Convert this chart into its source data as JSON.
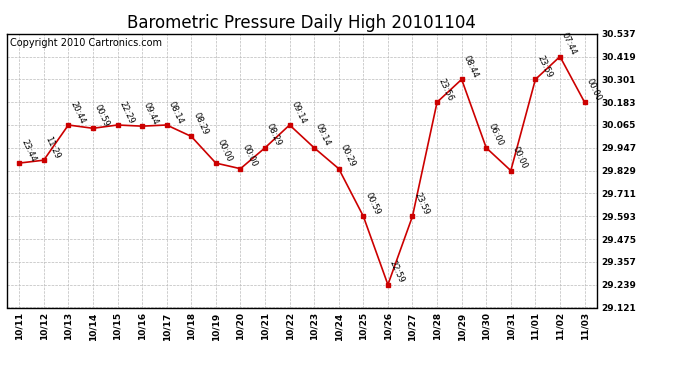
{
  "title": "Barometric Pressure Daily High 20101104",
  "copyright": "Copyright 2010 Cartronics.com",
  "x_labels": [
    "10/11",
    "10/12",
    "10/13",
    "10/14",
    "10/15",
    "10/16",
    "10/17",
    "10/18",
    "10/19",
    "10/20",
    "10/21",
    "10/22",
    "10/23",
    "10/24",
    "10/25",
    "10/26",
    "10/27",
    "10/28",
    "10/29",
    "10/30",
    "10/31",
    "11/01",
    "11/02",
    "11/03"
  ],
  "y_values": [
    29.868,
    29.883,
    30.065,
    30.048,
    30.065,
    30.059,
    30.065,
    30.006,
    29.868,
    29.839,
    29.947,
    30.065,
    29.947,
    29.839,
    29.593,
    29.239,
    29.593,
    30.183,
    30.301,
    29.947,
    29.829,
    30.301,
    30.419,
    30.183
  ],
  "point_labels": [
    "23:44",
    "11:29",
    "20:44",
    "00:59",
    "22:29",
    "09:44",
    "08:14",
    "08:29",
    "00:00",
    "00:00",
    "08:29",
    "09:14",
    "09:14",
    "00:29",
    "00:59",
    "22:59",
    "23:59",
    "23:56",
    "08:44",
    "06:00",
    "00:00",
    "23:59",
    "07:44",
    "00:00"
  ],
  "line_color": "#cc0000",
  "marker_color": "#cc0000",
  "background_color": "#ffffff",
  "grid_color": "#bbbbbb",
  "ylim_min": 29.121,
  "ylim_max": 30.537,
  "ytick_values": [
    29.121,
    29.239,
    29.357,
    29.475,
    29.593,
    29.711,
    29.829,
    29.947,
    30.065,
    30.183,
    30.301,
    30.419,
    30.537
  ],
  "title_fontsize": 12,
  "copyright_fontsize": 7,
  "label_fontsize": 6
}
